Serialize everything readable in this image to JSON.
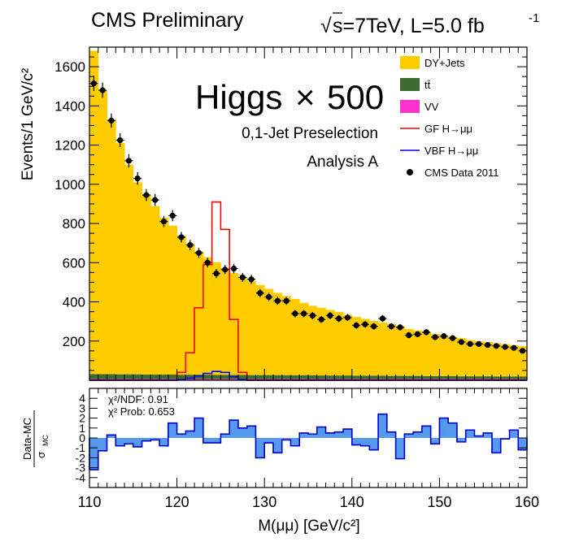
{
  "header": {
    "experiment": "CMS Preliminary",
    "energy_prefix": "s=7TeV, L=5.0 fb",
    "lumi_exponent": "-1"
  },
  "annotations": {
    "line1_main": "Higgs",
    "line1_mult": "×",
    "line1_factor": "500",
    "line2": "0,1-Jet Preselection",
    "line3": "Analysis A"
  },
  "ratio_stats": {
    "chi2ndf_label": "χ²/NDF: 0.91",
    "chi2prob_label": "χ²  Prob: 0.653"
  },
  "colors": {
    "dyjets": "#ffcc00",
    "ttbar": "#3d6b2f",
    "vv": "#ff33cc",
    "gf": "#ff0000",
    "vbf": "#0000ff",
    "ratio_fill": "#5599ee",
    "ratio_line": "#0000cc"
  },
  "chart_data": [
    {
      "type": "bar",
      "title": "",
      "xlabel": "M(μμ) [GeV/c²]",
      "ylabel": "Events/1 GeV/c²",
      "xlim": [
        110,
        160
      ],
      "ylim": [
        0,
        1700
      ],
      "xticks": [
        110,
        120,
        130,
        140,
        150,
        160
      ],
      "yticks": [
        200,
        400,
        600,
        800,
        1000,
        1200,
        1400,
        1600
      ],
      "grid": false,
      "legend_position": "top-right",
      "x_bin_low_edges": [
        110,
        111,
        112,
        113,
        114,
        115,
        116,
        117,
        118,
        119,
        120,
        121,
        122,
        123,
        124,
        125,
        126,
        127,
        128,
        129,
        130,
        131,
        132,
        133,
        134,
        135,
        136,
        137,
        138,
        139,
        140,
        141,
        142,
        143,
        144,
        145,
        146,
        147,
        148,
        149,
        150,
        151,
        152,
        153,
        154,
        155,
        156,
        157,
        158,
        159
      ],
      "series": [
        {
          "name": "DY+Jets",
          "kind": "filled-histogram",
          "values": [
            1650,
            1450,
            1300,
            1180,
            1070,
            980,
            920,
            860,
            800,
            760,
            710,
            670,
            630,
            600,
            575,
            545,
            520,
            500,
            480,
            460,
            440,
            420,
            405,
            390,
            370,
            355,
            345,
            335,
            325,
            310,
            300,
            290,
            280,
            272,
            265,
            255,
            240,
            232,
            225,
            215,
            205,
            200,
            195,
            185,
            180,
            175,
            170,
            165,
            160,
            155
          ]
        },
        {
          "name": "tt̄",
          "kind": "filled-histogram",
          "values": [
            25,
            25,
            25,
            24,
            24,
            24,
            23,
            23,
            23,
            23,
            22,
            22,
            22,
            22,
            21,
            21,
            21,
            21,
            20,
            20,
            20,
            20,
            19,
            19,
            19,
            19,
            18,
            18,
            18,
            18,
            17,
            17,
            17,
            17,
            16,
            16,
            16,
            16,
            15,
            15,
            15,
            15,
            14,
            14,
            14,
            14,
            13,
            13,
            13,
            13
          ]
        },
        {
          "name": "VV",
          "kind": "filled-histogram",
          "values": [
            6,
            6,
            6,
            6,
            6,
            6,
            6,
            6,
            6,
            6,
            6,
            6,
            6,
            6,
            6,
            6,
            6,
            6,
            6,
            6,
            6,
            6,
            6,
            6,
            6,
            6,
            6,
            6,
            6,
            6,
            6,
            6,
            6,
            6,
            6,
            6,
            6,
            6,
            6,
            6,
            6,
            6,
            6,
            6,
            6,
            6,
            6,
            6,
            6,
            6
          ]
        },
        {
          "name": "GF H→μμ",
          "kind": "line-histogram",
          "values": [
            0,
            0,
            0,
            0,
            0,
            0,
            0,
            0,
            0,
            0,
            40,
            140,
            370,
            590,
            910,
            770,
            310,
            40,
            0,
            0,
            0,
            0,
            0,
            0,
            0,
            0,
            0,
            0,
            0,
            0,
            0,
            0,
            0,
            0,
            0,
            0,
            0,
            0,
            0,
            0,
            0,
            0,
            0,
            0,
            0,
            0,
            0,
            0,
            0,
            0
          ]
        },
        {
          "name": "VBF H→μμ",
          "kind": "line-histogram",
          "values": [
            0,
            0,
            0,
            0,
            0,
            0,
            0,
            0,
            0,
            0,
            3,
            10,
            22,
            35,
            45,
            40,
            18,
            3,
            0,
            0,
            0,
            0,
            0,
            0,
            0,
            0,
            0,
            0,
            0,
            0,
            0,
            0,
            0,
            0,
            0,
            0,
            0,
            0,
            0,
            0,
            0,
            0,
            0,
            0,
            0,
            0,
            0,
            0,
            0,
            0
          ]
        },
        {
          "name": "CMS Data 2011",
          "kind": "points-with-errors",
          "x": [
            110.5,
            111.5,
            112.5,
            113.5,
            114.5,
            115.5,
            116.5,
            117.5,
            118.5,
            119.5,
            120.5,
            121.5,
            122.5,
            123.5,
            124.5,
            125.5,
            126.5,
            127.5,
            128.5,
            129.5,
            130.5,
            131.5,
            132.5,
            133.5,
            134.5,
            135.5,
            136.5,
            137.5,
            138.5,
            139.5,
            140.5,
            141.5,
            142.5,
            143.5,
            144.5,
            145.5,
            146.5,
            147.5,
            148.5,
            149.5,
            150.5,
            151.5,
            152.5,
            153.5,
            154.5,
            155.5,
            156.5,
            157.5,
            158.5,
            159.5
          ],
          "values": [
            1515,
            1480,
            1325,
            1225,
            1120,
            1030,
            945,
            920,
            810,
            840,
            730,
            690,
            650,
            600,
            545,
            565,
            570,
            525,
            515,
            445,
            425,
            405,
            405,
            340,
            340,
            330,
            310,
            330,
            315,
            320,
            280,
            285,
            275,
            315,
            275,
            270,
            230,
            235,
            245,
            220,
            225,
            215,
            195,
            185,
            185,
            180,
            175,
            170,
            165,
            150
          ]
        }
      ],
      "legend": [
        "DY+Jets",
        "tt̄",
        "VV",
        "GF H→μμ",
        "VBF H→μμ",
        "CMS Data 2011"
      ]
    },
    {
      "type": "bar",
      "title": "",
      "xlabel": "M(μμ) [GeV/c²]",
      "ylabel": "Data-MC / σ_MC",
      "ylabel_top": "Data-MC",
      "ylabel_bottom_main": "σ",
      "ylabel_bottom_sub": "MC",
      "xlim": [
        110,
        160
      ],
      "ylim": [
        -5,
        5
      ],
      "yticks": [
        -4,
        -3,
        -2,
        -1,
        0,
        1,
        2,
        3,
        4
      ],
      "grid": false,
      "values": [
        -3.2,
        -1.3,
        0.3,
        -0.8,
        -0.6,
        -0.9,
        -0.3,
        -0.2,
        -0.8,
        1.5,
        0.4,
        0.7,
        2.0,
        -0.5,
        -0.5,
        0.4,
        1.8,
        1.0,
        1.2,
        -2.0,
        -0.5,
        -1.5,
        -0.2,
        -0.8,
        0.5,
        0.4,
        1.1,
        0.5,
        0.6,
        0.9,
        -0.7,
        -0.8,
        -1.2,
        2.4,
        0.6,
        -2.1,
        0.4,
        0.6,
        1.2,
        -0.6,
        2.0,
        1.5,
        -0.4,
        0.8,
        0.2,
        0.5,
        -1.5,
        -0.1,
        0.8,
        -1.2
      ]
    }
  ]
}
